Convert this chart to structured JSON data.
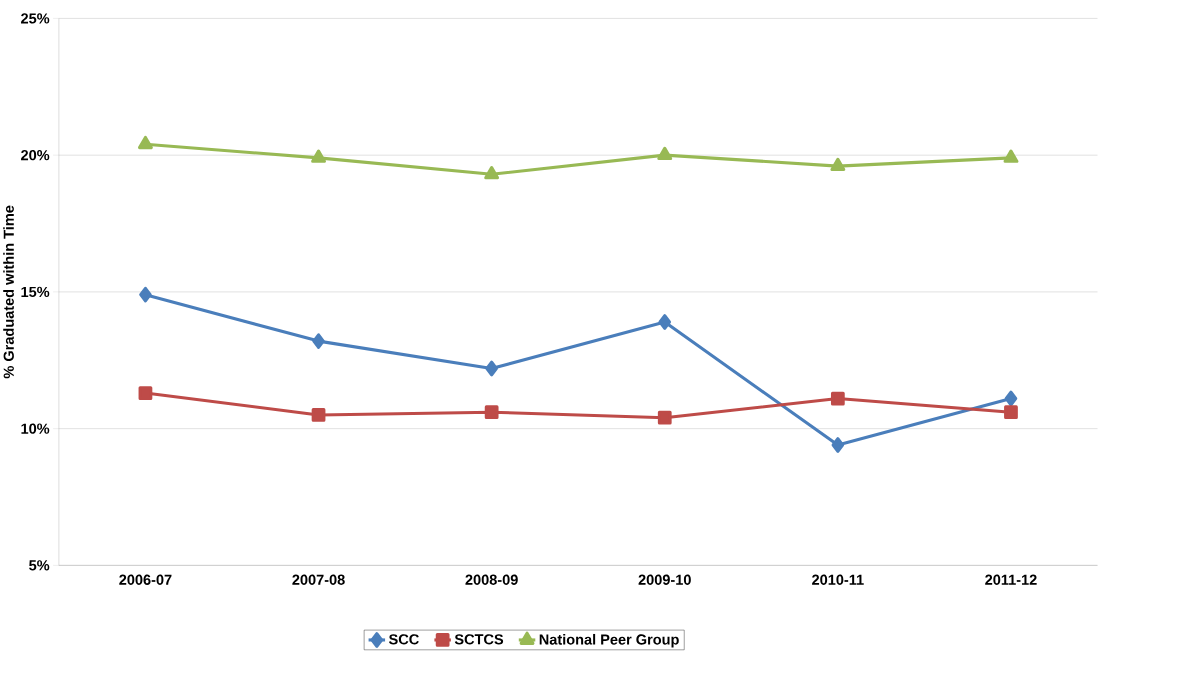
{
  "chart_data": {
    "type": "line",
    "ylabel": "% Graduated within Time",
    "categories": [
      "2006-07",
      "2007-08",
      "2008-09",
      "2009-10",
      "2010-11",
      "2011-12"
    ],
    "series": [
      {
        "name": "SCC",
        "color": "#4a7ebb",
        "marker": "diamond",
        "values": [
          14.9,
          13.2,
          12.2,
          13.9,
          9.4,
          11.1
        ]
      },
      {
        "name": "SCTCS",
        "color": "#be4b48",
        "marker": "square",
        "values": [
          11.3,
          10.5,
          10.6,
          10.4,
          11.1,
          10.6
        ]
      },
      {
        "name": "National Peer Group",
        "color": "#98b954",
        "marker": "triangle",
        "values": [
          20.4,
          19.9,
          19.3,
          20.0,
          19.6,
          19.9
        ]
      }
    ],
    "ylim": [
      5,
      25
    ],
    "yticks": [
      {
        "value": 5,
        "label": "5%"
      },
      {
        "value": 10,
        "label": "10%"
      },
      {
        "value": 15,
        "label": "15%"
      },
      {
        "value": 20,
        "label": "20%"
      },
      {
        "value": 25,
        "label": "25%"
      }
    ],
    "grid": "y",
    "legend": "bottom",
    "line_style": "solid"
  }
}
